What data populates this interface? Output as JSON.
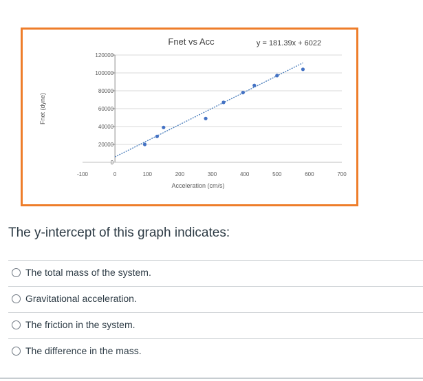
{
  "chart_data": {
    "type": "scatter",
    "title": "Fnet vs Acc",
    "xlabel": "Acceleration (cm/s)",
    "ylabel": "Fnet (dyne)",
    "xlim": [
      -100,
      700
    ],
    "ylim": [
      0,
      120000
    ],
    "x_ticks": [
      "-100",
      "0",
      "100",
      "200",
      "300",
      "400",
      "500",
      "600",
      "700"
    ],
    "y_ticks": [
      "0",
      "20000",
      "40000",
      "60000",
      "80000",
      "100000",
      "120000"
    ],
    "trendline": {
      "label": "y = 181.39x + 6022",
      "slope": 181.39,
      "intercept": 6022,
      "x_range": [
        0,
        580
      ],
      "color": "#4f81bd"
    },
    "grid": true,
    "marker_color": "#4472c4",
    "series": [
      {
        "x": [
          92,
          130,
          150,
          280,
          335,
          395,
          430,
          500,
          580
        ],
        "y": [
          20000,
          29000,
          39000,
          49000,
          67000,
          78000,
          86000,
          97000,
          104000
        ]
      }
    ]
  },
  "question": {
    "text": "The y-intercept of this graph indicates:",
    "options": [
      {
        "label": "The total mass of the system."
      },
      {
        "label": "Gravitational acceleration."
      },
      {
        "label": "The friction in the system."
      },
      {
        "label": "The difference in the mass."
      }
    ]
  }
}
